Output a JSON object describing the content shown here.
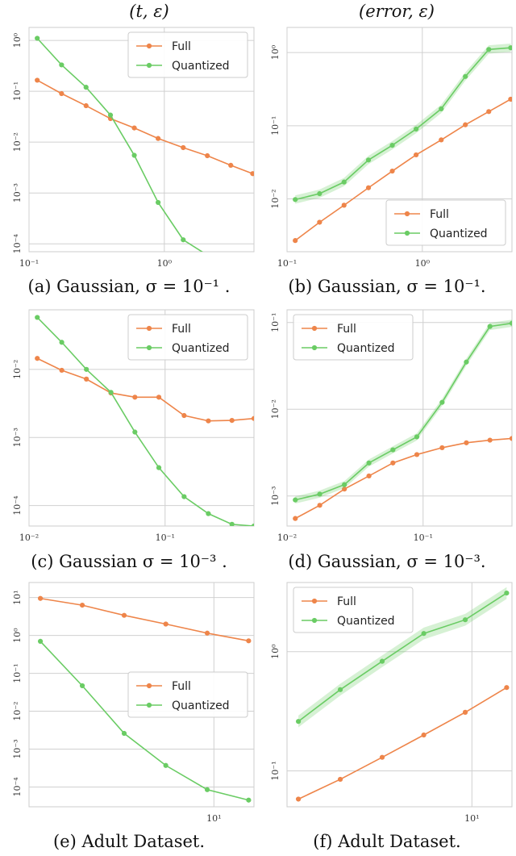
{
  "titles": {
    "left": "(t, ε)",
    "right": "(error, ε)"
  },
  "colors": {
    "full": "#ee854a",
    "quantized": "#6acc64",
    "grid": "#d0d0d0",
    "frame": "#cccccc"
  },
  "chart_data": [
    {
      "id": "a",
      "type": "line",
      "caption": "(a) Gaussian, σ = 10⁻¹ .",
      "xscale": "log",
      "yscale": "log",
      "xlim": [
        0.1,
        4.6
      ],
      "ylim": [
        7e-05,
        1.8
      ],
      "xticks": [
        {
          "v": 0.1,
          "label": "10⁻¹"
        },
        {
          "v": 1,
          "label": "10⁰"
        }
      ],
      "yticks": [
        {
          "v": 1,
          "label": "10⁰"
        },
        {
          "v": 0.1,
          "label": "10⁻¹"
        },
        {
          "v": 0.01,
          "label": "10⁻²"
        },
        {
          "v": 0.001,
          "label": "10⁻³"
        },
        {
          "v": 0.0001,
          "label": "10⁻⁴"
        }
      ],
      "grid": true,
      "legend": "top-right",
      "series": [
        {
          "name": "Full",
          "color": "full",
          "x": [
            0.115,
            0.174,
            0.264,
            0.4,
            0.6,
            0.9,
            1.38,
            2.08,
            3.1,
            4.5
          ],
          "y": [
            0.165,
            0.09,
            0.052,
            0.029,
            0.019,
            0.0118,
            0.0078,
            0.0054,
            0.0035,
            0.0024
          ]
        },
        {
          "name": "Quantized",
          "color": "quantized",
          "x": [
            0.115,
            0.174,
            0.264,
            0.4,
            0.6,
            0.9,
            1.38,
            2.08,
            3.1,
            4.5
          ],
          "y": [
            1.1,
            0.33,
            0.12,
            0.034,
            0.0055,
            0.00065,
            0.00012,
            6e-05,
            4.6e-05,
            4.3e-05
          ]
        }
      ]
    },
    {
      "id": "b",
      "type": "line",
      "caption": "(b) Gaussian, σ = 10⁻¹.",
      "xscale": "log",
      "yscale": "log",
      "xlim": [
        0.1,
        4.6
      ],
      "ylim": [
        0.0019,
        2.2
      ],
      "xticks": [
        {
          "v": 0.1,
          "label": "10⁻¹"
        },
        {
          "v": 1,
          "label": "10⁰"
        }
      ],
      "yticks": [
        {
          "v": 1,
          "label": "10⁰"
        },
        {
          "v": 0.1,
          "label": "10⁻¹"
        },
        {
          "v": 0.01,
          "label": "10⁻²"
        }
      ],
      "grid": true,
      "legend": "bottom-right",
      "series": [
        {
          "name": "Full",
          "color": "full",
          "x": [
            0.115,
            0.174,
            0.264,
            0.4,
            0.6,
            0.9,
            1.38,
            2.08,
            3.1,
            4.5
          ],
          "y": [
            0.0027,
            0.0048,
            0.0082,
            0.0142,
            0.024,
            0.04,
            0.064,
            0.103,
            0.156,
            0.23
          ]
        },
        {
          "name": "Quantized",
          "color": "quantized",
          "x": [
            0.115,
            0.174,
            0.264,
            0.4,
            0.6,
            0.9,
            1.38,
            2.08,
            3.1,
            4.5
          ],
          "y": [
            0.0098,
            0.0118,
            0.017,
            0.034,
            0.054,
            0.09,
            0.17,
            0.47,
            1.1,
            1.16
          ],
          "band": 0.14
        }
      ]
    },
    {
      "id": "c",
      "type": "line",
      "caption": "(c) Gaussian σ = 10⁻³ .",
      "xscale": "log",
      "yscale": "log",
      "xlim": [
        0.01,
        0.45
      ],
      "ylim": [
        5e-05,
        0.075
      ],
      "xticks": [
        {
          "v": 0.01,
          "label": "10⁻²"
        },
        {
          "v": 0.1,
          "label": "10⁻¹"
        }
      ],
      "yticks": [
        {
          "v": 0.01,
          "label": "10⁻²"
        },
        {
          "v": 0.001,
          "label": "10⁻³"
        },
        {
          "v": 0.0001,
          "label": "10⁻⁴"
        }
      ],
      "grid": true,
      "legend": "top-right",
      "series": [
        {
          "name": "Full",
          "color": "full",
          "x": [
            0.0115,
            0.0174,
            0.0264,
            0.04,
            0.06,
            0.09,
            0.138,
            0.208,
            0.31,
            0.45
          ],
          "y": [
            0.0145,
            0.0097,
            0.0072,
            0.0045,
            0.0039,
            0.0039,
            0.0021,
            0.00175,
            0.00178,
            0.0019
          ]
        },
        {
          "name": "Quantized",
          "color": "quantized",
          "x": [
            0.0115,
            0.0174,
            0.0264,
            0.04,
            0.06,
            0.09,
            0.138,
            0.208,
            0.31,
            0.45
          ],
          "y": [
            0.058,
            0.025,
            0.01,
            0.0046,
            0.0012,
            0.00036,
            0.000135,
            7.6e-05,
            5.3e-05,
            5e-05
          ]
        }
      ]
    },
    {
      "id": "d",
      "type": "line",
      "caption": "(d) Gaussian, σ = 10⁻³.",
      "xscale": "log",
      "yscale": "log",
      "xlim": [
        0.01,
        0.45
      ],
      "ylim": [
        0.00045,
        0.14
      ],
      "xticks": [
        {
          "v": 0.01,
          "label": "10⁻²"
        },
        {
          "v": 0.1,
          "label": "10⁻¹"
        }
      ],
      "yticks": [
        {
          "v": 0.1,
          "label": "10⁻¹"
        },
        {
          "v": 0.01,
          "label": "10⁻²"
        },
        {
          "v": 0.001,
          "label": "10⁻³"
        }
      ],
      "grid": true,
      "legend": "top-left",
      "series": [
        {
          "name": "Full",
          "color": "full",
          "x": [
            0.0115,
            0.0174,
            0.0264,
            0.04,
            0.06,
            0.09,
            0.138,
            0.208,
            0.31,
            0.45
          ],
          "y": [
            0.00055,
            0.00078,
            0.0012,
            0.0017,
            0.0024,
            0.003,
            0.0036,
            0.0041,
            0.0044,
            0.0046
          ]
        },
        {
          "name": "Quantized",
          "color": "quantized",
          "x": [
            0.0115,
            0.0174,
            0.0264,
            0.04,
            0.06,
            0.09,
            0.138,
            0.208,
            0.31,
            0.45
          ],
          "y": [
            0.0009,
            0.00105,
            0.00135,
            0.0024,
            0.0034,
            0.0048,
            0.012,
            0.035,
            0.09,
            0.098
          ],
          "band": 0.1
        }
      ]
    },
    {
      "id": "e",
      "type": "line",
      "caption": "(e) Adult Dataset.",
      "xscale": "log",
      "yscale": "log",
      "xlim": [
        1.8,
        14.5
      ],
      "ylim": [
        3e-05,
        25
      ],
      "xticks": [
        {
          "v": 10,
          "label": "10¹"
        }
      ],
      "yticks": [
        {
          "v": 10,
          "label": "10¹"
        },
        {
          "v": 1,
          "label": "10⁰"
        },
        {
          "v": 0.1,
          "label": "10⁻¹"
        },
        {
          "v": 0.01,
          "label": "10⁻²"
        },
        {
          "v": 0.001,
          "label": "10⁻³"
        },
        {
          "v": 0.0001,
          "label": "10⁻⁴"
        }
      ],
      "grid": true,
      "legend": "center-right",
      "series": [
        {
          "name": "Full",
          "color": "full",
          "x": [
            2,
            2.95,
            4.35,
            6.4,
            9.4,
            13.8
          ],
          "y": [
            9.5,
            6.3,
            3.4,
            2.0,
            1.15,
            0.72
          ]
        },
        {
          "name": "Quantized",
          "color": "quantized",
          "x": [
            2,
            2.95,
            4.35,
            6.4,
            9.4,
            13.8
          ],
          "y": [
            0.7,
            0.047,
            0.0026,
            0.00037,
            8.5e-05,
            4.5e-05
          ]
        }
      ]
    },
    {
      "id": "f",
      "type": "line",
      "caption": "(f) Adult Dataset.",
      "xscale": "log",
      "yscale": "log",
      "xlim": [
        1.8,
        14.5
      ],
      "ylim": [
        0.05,
        3.8
      ],
      "xticks": [
        {
          "v": 10,
          "label": "10¹"
        }
      ],
      "yticks": [
        {
          "v": 1,
          "label": "10⁰"
        },
        {
          "v": 0.1,
          "label": "10⁻¹"
        }
      ],
      "grid": true,
      "legend": "top-left",
      "series": [
        {
          "name": "Full",
          "color": "full",
          "x": [
            2,
            2.95,
            4.35,
            6.4,
            9.4,
            13.8
          ],
          "y": [
            0.058,
            0.085,
            0.13,
            0.2,
            0.31,
            0.5
          ]
        },
        {
          "name": "Quantized",
          "color": "quantized",
          "x": [
            2,
            2.95,
            4.35,
            6.4,
            9.4,
            13.8
          ],
          "y": [
            0.26,
            0.48,
            0.83,
            1.42,
            1.85,
            3.1
          ],
          "band": 0.12
        }
      ]
    }
  ]
}
